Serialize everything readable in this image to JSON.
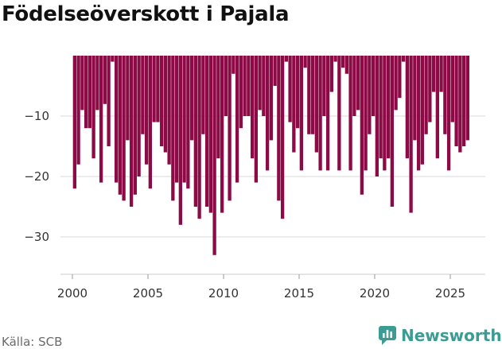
{
  "title": "Födelseöverskott i Pajala",
  "source": "Källa: SCB",
  "logo": {
    "name": "Newsworthy",
    "color": "#3c9b92"
  },
  "colors": {
    "bar": "#8c0a45",
    "grid": "#d9d9d9",
    "axis": "#cccccc"
  },
  "chart_data": {
    "type": "bar",
    "title": "Födelseöverskott i Pajala",
    "x_ticks": [
      "2000",
      "2005",
      "2010",
      "2015",
      "2020",
      "2025"
    ],
    "y_ticks": [
      "−10",
      "−20",
      "−30"
    ],
    "ylim": [
      -38,
      0
    ],
    "xlim": [
      1999.1,
      2026.6
    ],
    "grid": true,
    "points": [
      {
        "x": 2000.15,
        "y": -22
      },
      {
        "x": 2000.4,
        "y": -18
      },
      {
        "x": 2000.65,
        "y": -9
      },
      {
        "x": 2000.9,
        "y": -12
      },
      {
        "x": 2001.15,
        "y": -12
      },
      {
        "x": 2001.4,
        "y": -17
      },
      {
        "x": 2001.65,
        "y": -9
      },
      {
        "x": 2001.9,
        "y": -21
      },
      {
        "x": 2002.15,
        "y": -8
      },
      {
        "x": 2002.4,
        "y": -15
      },
      {
        "x": 2002.65,
        "y": -1
      },
      {
        "x": 2002.9,
        "y": -21
      },
      {
        "x": 2003.15,
        "y": -23
      },
      {
        "x": 2003.4,
        "y": -24
      },
      {
        "x": 2003.65,
        "y": -14
      },
      {
        "x": 2003.9,
        "y": -25
      },
      {
        "x": 2004.15,
        "y": -23
      },
      {
        "x": 2004.4,
        "y": -20
      },
      {
        "x": 2004.65,
        "y": -13
      },
      {
        "x": 2004.9,
        "y": -18
      },
      {
        "x": 2005.15,
        "y": -22
      },
      {
        "x": 2005.4,
        "y": -11
      },
      {
        "x": 2005.65,
        "y": -11
      },
      {
        "x": 2005.9,
        "y": -15
      },
      {
        "x": 2006.15,
        "y": -16
      },
      {
        "x": 2006.4,
        "y": -18
      },
      {
        "x": 2006.65,
        "y": -24
      },
      {
        "x": 2006.9,
        "y": -21
      },
      {
        "x": 2007.15,
        "y": -28
      },
      {
        "x": 2007.4,
        "y": -21
      },
      {
        "x": 2007.65,
        "y": -22
      },
      {
        "x": 2007.9,
        "y": -14
      },
      {
        "x": 2008.15,
        "y": -25
      },
      {
        "x": 2008.4,
        "y": -27
      },
      {
        "x": 2008.65,
        "y": -13
      },
      {
        "x": 2008.9,
        "y": -25
      },
      {
        "x": 2009.15,
        "y": -26
      },
      {
        "x": 2009.4,
        "y": -33
      },
      {
        "x": 2009.65,
        "y": -17
      },
      {
        "x": 2009.9,
        "y": -26
      },
      {
        "x": 2010.15,
        "y": -10
      },
      {
        "x": 2010.4,
        "y": -24
      },
      {
        "x": 2010.65,
        "y": -3
      },
      {
        "x": 2010.9,
        "y": -21
      },
      {
        "x": 2011.15,
        "y": -12
      },
      {
        "x": 2011.4,
        "y": -10
      },
      {
        "x": 2011.65,
        "y": -10
      },
      {
        "x": 2011.9,
        "y": -17
      },
      {
        "x": 2012.15,
        "y": -21
      },
      {
        "x": 2012.4,
        "y": -9
      },
      {
        "x": 2012.65,
        "y": -10
      },
      {
        "x": 2012.9,
        "y": -19
      },
      {
        "x": 2013.15,
        "y": -14
      },
      {
        "x": 2013.4,
        "y": -5
      },
      {
        "x": 2013.65,
        "y": -24
      },
      {
        "x": 2013.9,
        "y": -27
      },
      {
        "x": 2014.15,
        "y": -1
      },
      {
        "x": 2014.4,
        "y": -11
      },
      {
        "x": 2014.65,
        "y": -16
      },
      {
        "x": 2014.9,
        "y": -12
      },
      {
        "x": 2015.15,
        "y": -19
      },
      {
        "x": 2015.4,
        "y": -2
      },
      {
        "x": 2015.65,
        "y": -13
      },
      {
        "x": 2015.9,
        "y": -13
      },
      {
        "x": 2016.15,
        "y": -16
      },
      {
        "x": 2016.4,
        "y": -19
      },
      {
        "x": 2016.65,
        "y": -10
      },
      {
        "x": 2016.9,
        "y": -19
      },
      {
        "x": 2017.15,
        "y": -6
      },
      {
        "x": 2017.4,
        "y": -1
      },
      {
        "x": 2017.65,
        "y": -19
      },
      {
        "x": 2017.9,
        "y": -2
      },
      {
        "x": 2018.15,
        "y": -3
      },
      {
        "x": 2018.4,
        "y": -19
      },
      {
        "x": 2018.65,
        "y": -10
      },
      {
        "x": 2018.9,
        "y": -9
      },
      {
        "x": 2019.15,
        "y": -23
      },
      {
        "x": 2019.4,
        "y": -19
      },
      {
        "x": 2019.65,
        "y": -13
      },
      {
        "x": 2019.9,
        "y": -10
      },
      {
        "x": 2020.15,
        "y": -20
      },
      {
        "x": 2020.4,
        "y": -17
      },
      {
        "x": 2020.65,
        "y": -19
      },
      {
        "x": 2020.9,
        "y": -17
      },
      {
        "x": 2021.15,
        "y": -25
      },
      {
        "x": 2021.4,
        "y": -9
      },
      {
        "x": 2021.65,
        "y": -7
      },
      {
        "x": 2021.9,
        "y": -1
      },
      {
        "x": 2022.15,
        "y": -17
      },
      {
        "x": 2022.4,
        "y": -26
      },
      {
        "x": 2022.65,
        "y": -14
      },
      {
        "x": 2022.9,
        "y": -19
      },
      {
        "x": 2023.15,
        "y": -18
      },
      {
        "x": 2023.4,
        "y": -13
      },
      {
        "x": 2023.65,
        "y": -11
      },
      {
        "x": 2023.9,
        "y": -6
      },
      {
        "x": 2024.15,
        "y": -17
      },
      {
        "x": 2024.4,
        "y": -6
      },
      {
        "x": 2024.65,
        "y": -13
      },
      {
        "x": 2024.9,
        "y": -19
      },
      {
        "x": 2025.15,
        "y": -11
      },
      {
        "x": 2025.4,
        "y": -15
      },
      {
        "x": 2025.65,
        "y": -16
      },
      {
        "x": 2025.9,
        "y": -15
      },
      {
        "x": 2026.15,
        "y": -14
      }
    ]
  }
}
